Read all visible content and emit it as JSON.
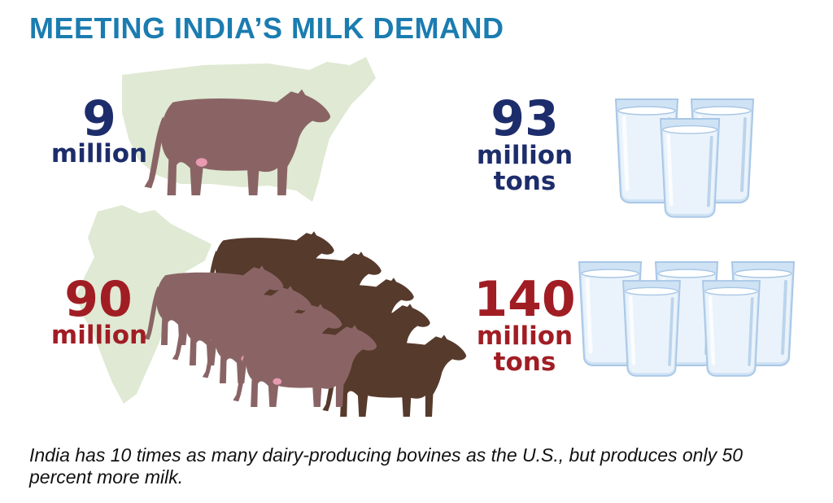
{
  "title": "MEETING INDIA’S MILK DEMAND",
  "us": {
    "cattle_number": "9",
    "cattle_unit": "million",
    "milk_number": "93",
    "milk_unit_1": "million",
    "milk_unit_2": "tons"
  },
  "india": {
    "cattle_number": "90",
    "cattle_unit": "million",
    "milk_number": "140",
    "milk_unit_1": "million",
    "milk_unit_2": "tons"
  },
  "caption": "India has 10 times as many dairy-producing bovines as the U.S., but produces only 50 percent more milk.",
  "colors": {
    "title": "#1b7cb0",
    "us_text": "#1d2d6b",
    "india_text": "#a11d24",
    "map": "#dfe9d3",
    "cow_light": "#8a6465",
    "cow_dark": "#563a2c",
    "glass": "#cfe3f5"
  },
  "icons": [
    "us-map-icon",
    "india-map-icon",
    "cow-icon",
    "milk-glass-icon"
  ]
}
